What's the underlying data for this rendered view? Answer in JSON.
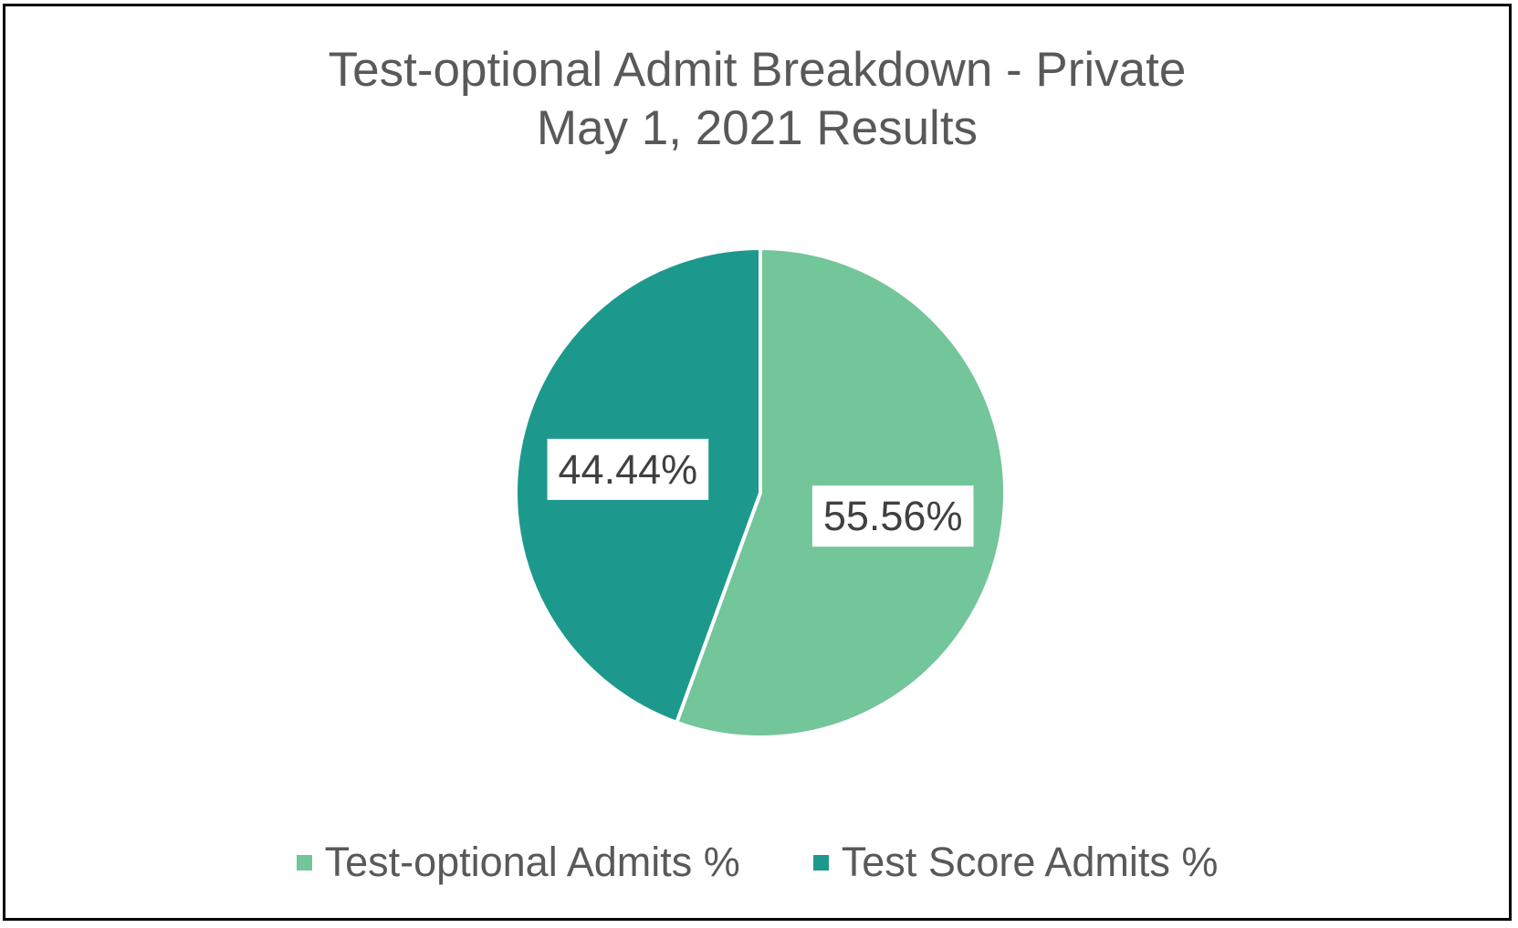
{
  "chart_data": {
    "type": "pie",
    "title": [
      "Test-optional Admit Breakdown - Private",
      "May 1, 2021 Results"
    ],
    "slices": [
      {
        "name": "Test-optional Admits %",
        "value": 55.56,
        "label": "55.56%",
        "color": "#73C59A"
      },
      {
        "name": "Test Score Admits %",
        "value": 44.44,
        "label": "44.44%",
        "color": "#1C998C"
      }
    ],
    "start_angle_deg": 0,
    "direction": "clockwise",
    "legend_position": "bottom"
  }
}
